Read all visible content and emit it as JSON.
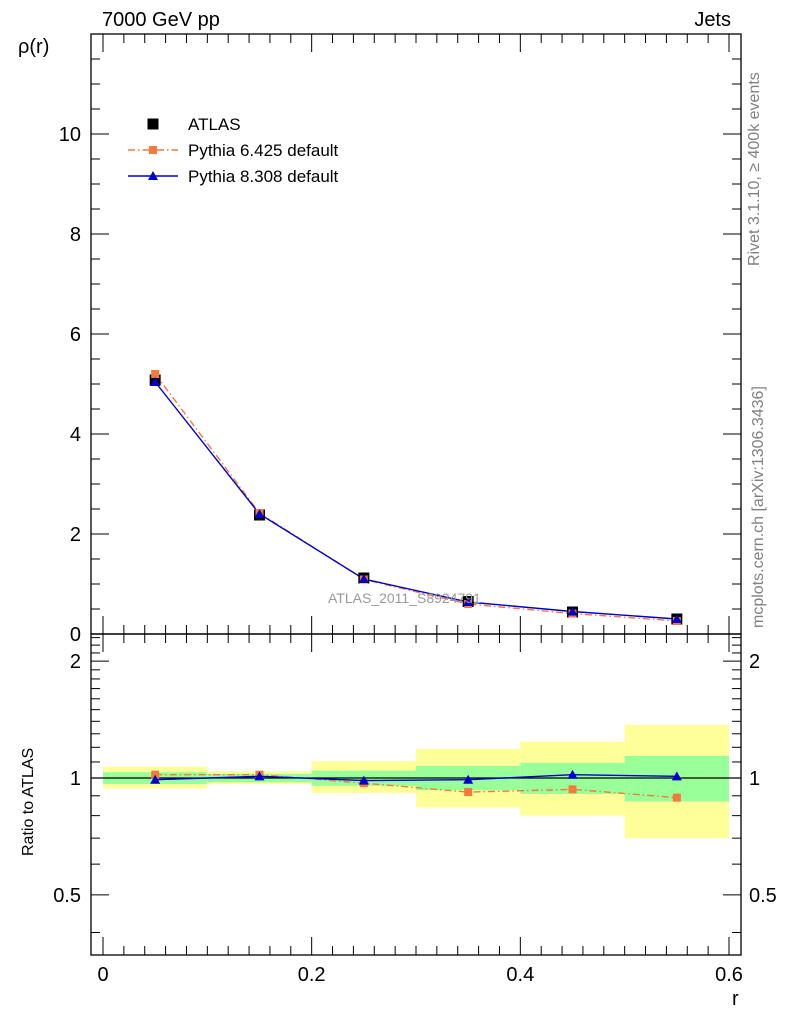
{
  "header": {
    "left": "7000 GeV pp",
    "right": "Jets"
  },
  "side_text": {
    "rivet": "Rivet 3.1.10, ≥ 400k events",
    "mcplots": "mcplots.cern.ch [arXiv:1306.3436]"
  },
  "watermark": "ATLAS_2011_S8924791",
  "chart_data": [
    {
      "type": "line",
      "ylabel": "ρ(r)",
      "xlim": [
        0,
        0.6
      ],
      "ylim": [
        0,
        12
      ],
      "yticks": [
        0,
        2,
        4,
        6,
        8,
        10
      ],
      "ytick_labels": [
        "0",
        "2",
        "4",
        "6",
        "8",
        "10"
      ],
      "legend": {
        "placement": "top-left"
      },
      "x": [
        0.05,
        0.15,
        0.25,
        0.35,
        0.45,
        0.55
      ],
      "series": [
        {
          "name": "ATLAS",
          "style": "marker",
          "marker": "square",
          "color": "#000000",
          "values": [
            5.08,
            2.38,
            1.12,
            0.65,
            0.44,
            0.3
          ]
        },
        {
          "name": "Pythia 6.425 default",
          "style": "dashdot",
          "marker": "square",
          "color": "#f5793a",
          "values": [
            5.2,
            2.42,
            1.09,
            0.6,
            0.41,
            0.26
          ]
        },
        {
          "name": "Pythia 8.308 default",
          "style": "solid",
          "marker": "triangle",
          "color": "#0000cc",
          "values": [
            5.04,
            2.4,
            1.1,
            0.64,
            0.45,
            0.3
          ]
        }
      ]
    },
    {
      "type": "line",
      "ylabel": "Ratio to ATLAS",
      "xlabel": "r",
      "xlim": [
        0,
        0.6
      ],
      "xticks": [
        0,
        0.2,
        0.4,
        0.6
      ],
      "xtick_labels": [
        "0",
        "0.2",
        "0.4",
        "0.6"
      ],
      "ylim": [
        0.35,
        2.35
      ],
      "yscale": "log",
      "yticks": [
        0.5,
        1,
        2
      ],
      "ytick_labels": [
        "0.5",
        "1",
        "2"
      ],
      "x": [
        0.05,
        0.15,
        0.25,
        0.35,
        0.45,
        0.55
      ],
      "bin_edges": [
        0,
        0.1,
        0.2,
        0.3,
        0.4,
        0.5,
        0.6
      ],
      "band_inner": [
        [
          0.965,
          1.035
        ],
        [
          0.975,
          1.025
        ],
        [
          0.955,
          1.045
        ],
        [
          0.93,
          1.075
        ],
        [
          0.91,
          1.095
        ],
        [
          0.87,
          1.14
        ]
      ],
      "band_outer": [
        [
          0.94,
          1.07
        ],
        [
          0.965,
          1.04
        ],
        [
          0.915,
          1.105
        ],
        [
          0.84,
          1.19
        ],
        [
          0.8,
          1.24
        ],
        [
          0.7,
          1.37
        ]
      ],
      "band_colors": {
        "inner": "#99ff99",
        "outer": "#ffff99"
      },
      "series": [
        {
          "name": "Pythia 6.425 default",
          "color": "#f5793a",
          "style": "dashdot",
          "marker": "square",
          "values": [
            1.02,
            1.02,
            0.97,
            0.92,
            0.935,
            0.89
          ]
        },
        {
          "name": "Pythia 8.308 default",
          "color": "#0000cc",
          "style": "solid",
          "marker": "triangle",
          "values": [
            0.99,
            1.01,
            0.985,
            0.99,
            1.02,
            1.01
          ]
        }
      ]
    }
  ]
}
